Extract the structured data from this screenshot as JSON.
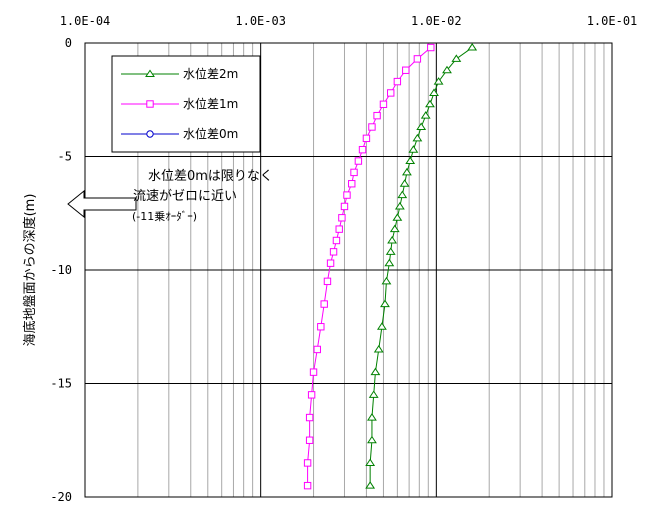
{
  "chart_data": {
    "type": "line",
    "title": "",
    "xlabel": "",
    "ylabel": "海底地盤面からの深度(m)",
    "x_scale": "log",
    "xlim": [
      0.0001,
      0.1
    ],
    "ylim": [
      -20,
      0
    ],
    "x_ticks": [
      "1.0E-04",
      "1.0E-03",
      "1.0E-02",
      "1.0E-01"
    ],
    "x_tick_values": [
      0.0001,
      0.001,
      0.01,
      0.1
    ],
    "y_ticks": [
      "0",
      "-5",
      "-10",
      "-15",
      "-20"
    ],
    "y_tick_values": [
      0,
      -5,
      -10,
      -15,
      -20
    ],
    "grid": true,
    "legend_position": "top-left",
    "series": [
      {
        "name": "水位差2m",
        "color": "#008000",
        "marker": "triangle",
        "points": [
          [
            0.016,
            -0.2
          ],
          [
            0.013,
            -0.7
          ],
          [
            0.0115,
            -1.2
          ],
          [
            0.0103,
            -1.7
          ],
          [
            0.0097,
            -2.2
          ],
          [
            0.0092,
            -2.7
          ],
          [
            0.0087,
            -3.2
          ],
          [
            0.0082,
            -3.7
          ],
          [
            0.0078,
            -4.2
          ],
          [
            0.0074,
            -4.7
          ],
          [
            0.0071,
            -5.2
          ],
          [
            0.0068,
            -5.7
          ],
          [
            0.0066,
            -6.2
          ],
          [
            0.0064,
            -6.7
          ],
          [
            0.0062,
            -7.2
          ],
          [
            0.006,
            -7.7
          ],
          [
            0.0058,
            -8.2
          ],
          [
            0.0056,
            -8.7
          ],
          [
            0.0055,
            -9.2
          ],
          [
            0.0054,
            -9.7
          ],
          [
            0.0052,
            -10.5
          ],
          [
            0.0051,
            -11.5
          ],
          [
            0.0049,
            -12.5
          ],
          [
            0.0047,
            -13.5
          ],
          [
            0.0045,
            -14.5
          ],
          [
            0.0044,
            -15.5
          ],
          [
            0.0043,
            -16.5
          ],
          [
            0.0043,
            -17.5
          ],
          [
            0.0042,
            -18.5
          ],
          [
            0.0042,
            -19.5
          ]
        ]
      },
      {
        "name": "水位差1m",
        "color": "#ff00ff",
        "marker": "square",
        "points": [
          [
            0.0093,
            -0.2
          ],
          [
            0.0078,
            -0.7
          ],
          [
            0.0067,
            -1.2
          ],
          [
            0.006,
            -1.7
          ],
          [
            0.0055,
            -2.2
          ],
          [
            0.005,
            -2.7
          ],
          [
            0.0046,
            -3.2
          ],
          [
            0.0043,
            -3.7
          ],
          [
            0.004,
            -4.2
          ],
          [
            0.0038,
            -4.7
          ],
          [
            0.0036,
            -5.2
          ],
          [
            0.0034,
            -5.7
          ],
          [
            0.0033,
            -6.2
          ],
          [
            0.0031,
            -6.7
          ],
          [
            0.003,
            -7.2
          ],
          [
            0.0029,
            -7.7
          ],
          [
            0.0028,
            -8.2
          ],
          [
            0.0027,
            -8.7
          ],
          [
            0.0026,
            -9.2
          ],
          [
            0.0025,
            -9.7
          ],
          [
            0.0024,
            -10.5
          ],
          [
            0.0023,
            -11.5
          ],
          [
            0.0022,
            -12.5
          ],
          [
            0.0021,
            -13.5
          ],
          [
            0.002,
            -14.5
          ],
          [
            0.00195,
            -15.5
          ],
          [
            0.0019,
            -16.5
          ],
          [
            0.0019,
            -17.5
          ],
          [
            0.00185,
            -18.5
          ],
          [
            0.00185,
            -19.5
          ]
        ]
      },
      {
        "name": "水位差0m",
        "color": "#0000cc",
        "marker": "circle",
        "points": []
      }
    ],
    "annotations": {
      "line1": "水位差0mは限りなく",
      "line2": "流速がゼロに近い",
      "line3": "(-11乗ｵｰﾀﾞｰ)"
    }
  }
}
